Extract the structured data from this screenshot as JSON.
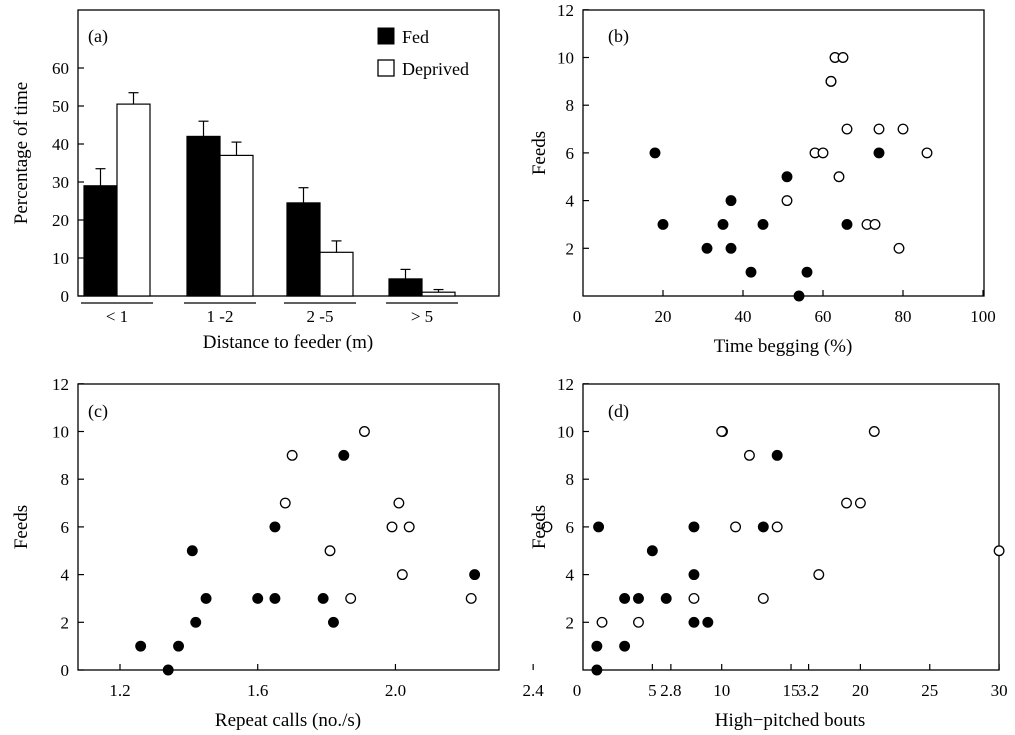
{
  "chart_data": [
    {
      "id": "a",
      "type": "bar",
      "panel_label": "(a)",
      "xlabel": "Distance to feeder (m)",
      "ylabel": "Percentage of time",
      "categories": [
        "< 1",
        "1 -2",
        "2 -5",
        "> 5"
      ],
      "ylim": [
        0,
        70
      ],
      "yticks": [
        0,
        10,
        20,
        30,
        40,
        50,
        60
      ],
      "legend_position": "top-right",
      "series": [
        {
          "name": "Fed",
          "fill": "#000000",
          "values": [
            29,
            42,
            24.5,
            4.5
          ],
          "errors": [
            4.5,
            4,
            4,
            2.5
          ]
        },
        {
          "name": "Deprived",
          "fill": "#ffffff",
          "values": [
            50.5,
            37,
            11.5,
            1
          ],
          "errors": [
            3,
            3.5,
            3,
            0.7
          ]
        }
      ]
    },
    {
      "id": "b",
      "type": "scatter",
      "panel_label": "(b)",
      "xlabel": "Time begging (%)",
      "ylabel": "Feeds",
      "xlim": [
        0,
        100
      ],
      "ylim": [
        0,
        12
      ],
      "xticks": [
        0,
        20,
        40,
        60,
        80,
        100
      ],
      "yticks": [
        2,
        4,
        6,
        8,
        10,
        12
      ],
      "x_origin_label": "0",
      "series": [
        {
          "name": "Fed",
          "fill": "#000000",
          "points": [
            [
              18,
              6
            ],
            [
              20,
              3
            ],
            [
              31,
              2
            ],
            [
              35,
              3
            ],
            [
              37,
              4
            ],
            [
              37,
              2
            ],
            [
              42,
              1
            ],
            [
              45,
              3
            ],
            [
              51,
              5
            ],
            [
              54,
              0
            ],
            [
              56,
              1
            ],
            [
              62,
              9
            ],
            [
              66,
              3
            ],
            [
              74,
              6
            ]
          ]
        },
        {
          "name": "Deprived",
          "fill": "#ffffff",
          "points": [
            [
              51,
              4
            ],
            [
              58,
              6
            ],
            [
              60,
              6
            ],
            [
              62,
              9
            ],
            [
              63,
              10
            ],
            [
              64,
              5
            ],
            [
              65,
              10
            ],
            [
              66,
              7
            ],
            [
              71,
              3
            ],
            [
              73,
              3
            ],
            [
              74,
              7
            ],
            [
              79,
              2
            ],
            [
              80,
              7
            ],
            [
              86,
              6
            ]
          ]
        }
      ]
    },
    {
      "id": "c",
      "type": "scatter",
      "panel_label": "(c)",
      "xlabel": "Repeat calls (no./s)",
      "ylabel": "Feeds",
      "xlim": [
        1.05,
        3.2
      ],
      "ylim": [
        0,
        12
      ],
      "xticks": [
        "1.2",
        "1.6",
        "2.0",
        "2.4",
        "2.8",
        "3.2"
      ],
      "yticks": [
        0,
        2,
        4,
        6,
        8,
        10,
        12
      ],
      "series": [
        {
          "name": "Fed",
          "fill": "#000000",
          "points": [
            [
              1.26,
              1
            ],
            [
              1.34,
              0
            ],
            [
              1.37,
              1
            ],
            [
              1.41,
              5
            ],
            [
              1.42,
              2
            ],
            [
              1.45,
              3
            ],
            [
              1.6,
              3
            ],
            [
              1.65,
              6
            ],
            [
              1.65,
              3
            ],
            [
              1.79,
              3
            ],
            [
              1.82,
              2
            ],
            [
              1.85,
              9
            ],
            [
              2.23,
              4
            ],
            [
              2.59,
              6
            ]
          ]
        },
        {
          "name": "Deprived",
          "fill": "#ffffff",
          "points": [
            [
              1.68,
              7
            ],
            [
              1.7,
              9
            ],
            [
              1.81,
              5
            ],
            [
              1.87,
              3
            ],
            [
              1.91,
              10
            ],
            [
              1.99,
              6
            ],
            [
              2.01,
              7
            ],
            [
              2.02,
              4
            ],
            [
              2.04,
              6
            ],
            [
              2.22,
              3
            ],
            [
              2.44,
              6
            ],
            [
              2.6,
              2
            ],
            [
              2.95,
              10
            ]
          ]
        }
      ]
    },
    {
      "id": "d",
      "type": "scatter",
      "panel_label": "(d)",
      "xlabel": "High−pitched bouts",
      "ylabel": "Feeds",
      "xlim": [
        0,
        30
      ],
      "ylim": [
        0,
        12
      ],
      "xticks": [
        0,
        5,
        10,
        15,
        20,
        25,
        30
      ],
      "yticks": [
        2,
        4,
        6,
        8,
        10,
        12
      ],
      "x_origin_label": "0",
      "series": [
        {
          "name": "Fed",
          "fill": "#000000",
          "points": [
            [
              1,
              1
            ],
            [
              1,
              0
            ],
            [
              3,
              1
            ],
            [
              3,
              3
            ],
            [
              4,
              3
            ],
            [
              5,
              5
            ],
            [
              6,
              3
            ],
            [
              8,
              6
            ],
            [
              8,
              4
            ],
            [
              8,
              2
            ],
            [
              9,
              2
            ],
            [
              13,
              6
            ],
            [
              14,
              9
            ]
          ]
        },
        {
          "name": "Deprived",
          "fill": "#ffffff",
          "points": [
            [
              4,
              2
            ],
            [
              8,
              3
            ],
            [
              10,
              10
            ],
            [
              11,
              6
            ],
            [
              12,
              9
            ],
            [
              13,
              3
            ],
            [
              14,
              6
            ],
            [
              17,
              4
            ],
            [
              19,
              7
            ],
            [
              20,
              7
            ],
            [
              21,
              10
            ],
            [
              30,
              5
            ]
          ]
        }
      ]
    }
  ]
}
